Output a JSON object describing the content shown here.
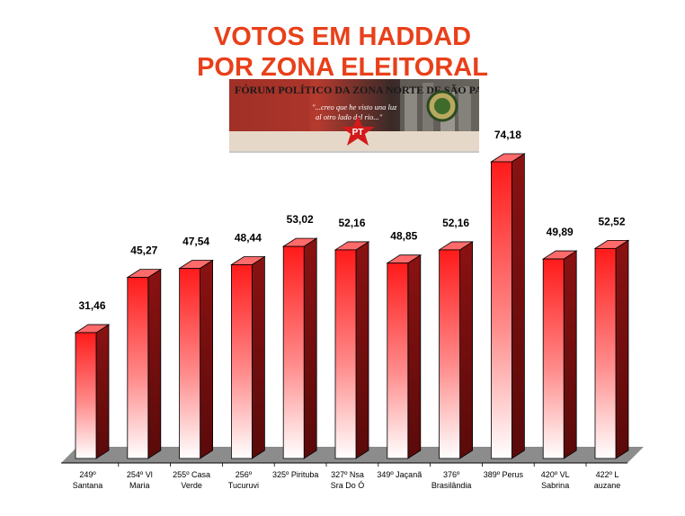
{
  "title_line1": "VOTOS EM HADDAD",
  "title_line2": "POR ZONA ELEITORAL",
  "banner": {
    "heading": "FÓRUM POLÍTICO DA ZONA NORTE DE SÃO PAULO",
    "quote_line1": "\"...creo que he visto una luz",
    "quote_line2": "al otro lado del rio...\"",
    "logo_text": "PT"
  },
  "colors": {
    "title": "#e8401a",
    "bar_front_top": "#ff1a1a",
    "bar_front_bottom": "#ffffff",
    "bar_side": "#7a1010",
    "floor": "#8a8a8a"
  },
  "chart_data": {
    "type": "bar",
    "three_d": true,
    "categories": [
      [
        "249º",
        "Santana"
      ],
      [
        "254º Vl",
        "Maria"
      ],
      [
        "255º Casa",
        "Verde"
      ],
      [
        "256º",
        "Tucuruvi"
      ],
      [
        "325º Pirituba"
      ],
      [
        "327º Nsa",
        "Sra Do Ó"
      ],
      [
        "349º Jaçanã"
      ],
      [
        "376º",
        "Brasilândia"
      ],
      [
        "389º Perus"
      ],
      [
        "420º VL",
        "Sabrina"
      ],
      [
        "422º L",
        "auzane"
      ]
    ],
    "values": [
      31.46,
      45.27,
      47.54,
      48.44,
      53.02,
      52.16,
      48.85,
      52.16,
      74.18,
      49.89,
      52.52
    ],
    "value_labels": [
      "31,46",
      "45,27",
      "47,54",
      "48,44",
      "53,02",
      "52,16",
      "48,85",
      "52,16",
      "74,18",
      "49,89",
      "52,52"
    ],
    "ylim": [
      0,
      74.18
    ],
    "grid": false,
    "legend": "none"
  }
}
